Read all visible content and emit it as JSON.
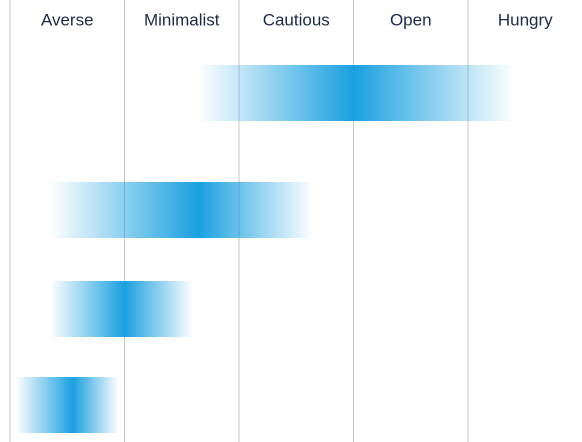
{
  "chart_data": {
    "type": "range",
    "categories": [
      "Averse",
      "Minimalist",
      "Cautious",
      "Open",
      "Hungry"
    ],
    "xlim": [
      0,
      5
    ],
    "xticks": [
      0,
      1,
      2,
      3,
      4
    ],
    "grid": true,
    "color": "#1aa0e0",
    "bars": [
      {
        "start": 1.65,
        "peak": 3.0,
        "end": 4.4
      },
      {
        "start": 0.35,
        "peak": 1.65,
        "end": 2.65
      },
      {
        "start": 0.35,
        "peak": 1.0,
        "end": 1.6
      },
      {
        "start": 0.05,
        "peak": 0.55,
        "end": 0.95
      }
    ]
  }
}
